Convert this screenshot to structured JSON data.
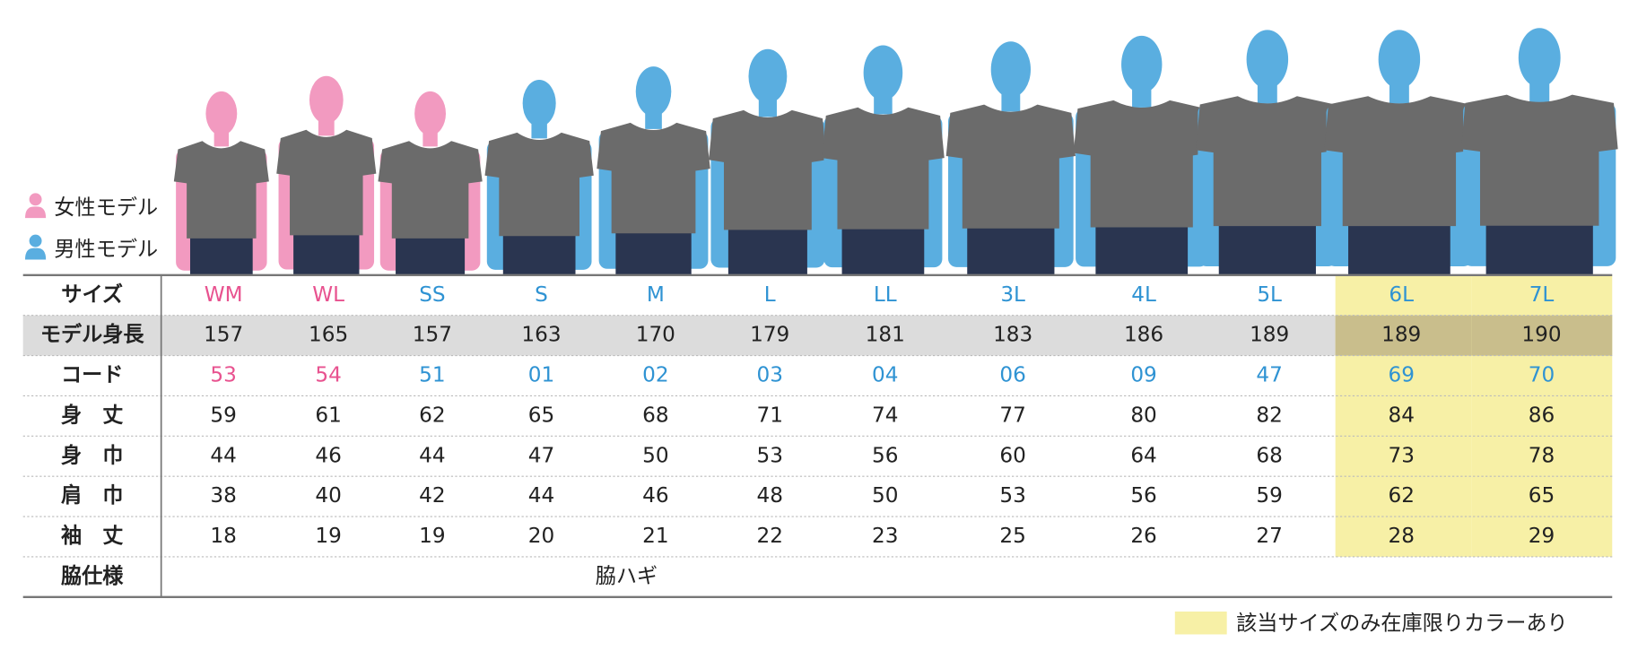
{
  "legend": {
    "female": "女性モデル",
    "male": "男性モデル",
    "female_color": "#f29ac0",
    "male_color": "#5aaee0"
  },
  "table": {
    "row_labels": [
      "サイズ",
      "モデル身長",
      "コード",
      "身　丈",
      "身　巾",
      "肩　巾",
      "袖　丈",
      "脇仕様"
    ],
    "column_colors": [
      "#e8528f",
      "#e8528f",
      "#2f93d3",
      "#2f93d3",
      "#2f93d3",
      "#2f93d3",
      "#2f93d3",
      "#2f93d3",
      "#2f93d3",
      "#2f93d3",
      "#2f93d3",
      "#2f93d3"
    ],
    "figure_colors": [
      "#f29ac0",
      "#f29ac0",
      "#f29ac0",
      "#5aaee0",
      "#5aaee0",
      "#5aaee0",
      "#5aaee0",
      "#5aaee0",
      "#5aaee0",
      "#5aaee0",
      "#5aaee0",
      "#5aaee0"
    ],
    "highlighted": [
      false,
      false,
      false,
      false,
      false,
      false,
      false,
      false,
      false,
      false,
      true,
      true
    ],
    "highlight_color": "#f7f0a6",
    "sizes": [
      "WM",
      "WL",
      "SS",
      "S",
      "M",
      "L",
      "LL",
      "3L",
      "4L",
      "5L",
      "6L",
      "7L"
    ],
    "heights": [
      157,
      165,
      157,
      163,
      170,
      179,
      181,
      183,
      186,
      189,
      189,
      190
    ],
    "codes": [
      "53",
      "54",
      "51",
      "01",
      "02",
      "03",
      "04",
      "06",
      "09",
      "47",
      "69",
      "70"
    ],
    "body_length": [
      59,
      61,
      62,
      65,
      68,
      71,
      74,
      77,
      80,
      82,
      84,
      86
    ],
    "body_width": [
      44,
      46,
      44,
      47,
      50,
      53,
      56,
      60,
      64,
      68,
      73,
      78
    ],
    "shoulder_width": [
      38,
      40,
      42,
      44,
      46,
      48,
      50,
      53,
      56,
      59,
      62,
      65
    ],
    "sleeve_length": [
      18,
      19,
      19,
      20,
      21,
      22,
      23,
      25,
      26,
      27,
      28,
      29
    ],
    "side_spec": "脇ハギ"
  },
  "note": "該当サイズのみ在庫限りカラーあり"
}
